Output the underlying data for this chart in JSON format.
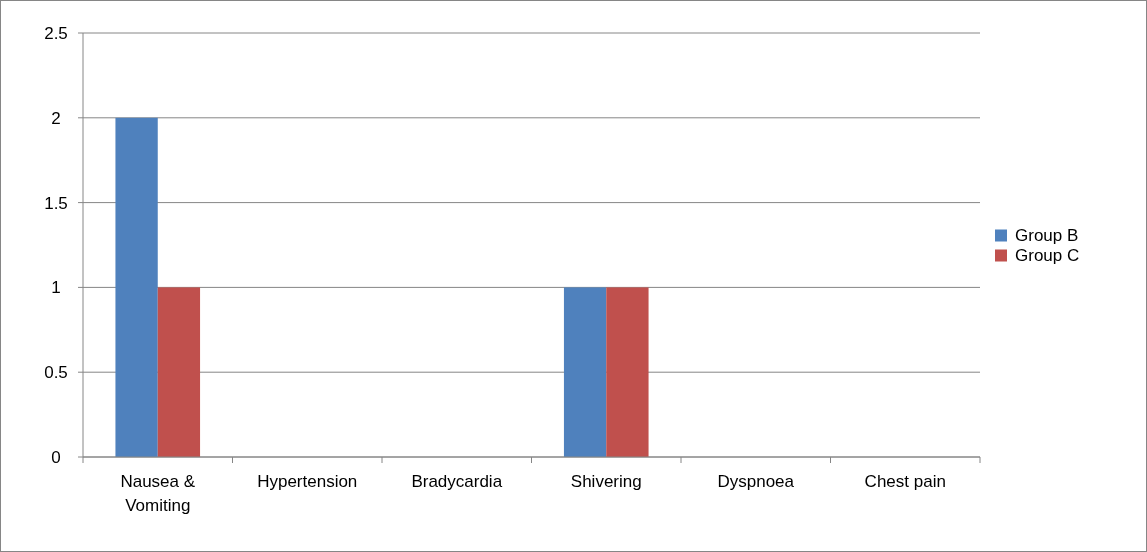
{
  "chart_data": {
    "type": "bar",
    "categories": [
      "Nausea & Vomiting",
      "Hypertension",
      "Bradycardia",
      "Shivering",
      "Dyspnoea",
      "Chest pain"
    ],
    "series": [
      {
        "name": "Group B",
        "color": "#4f81bd",
        "values": [
          2,
          0,
          0,
          1,
          0,
          0
        ]
      },
      {
        "name": "Group C",
        "color": "#c0504d",
        "values": [
          1,
          0,
          0,
          1,
          0,
          0
        ]
      }
    ],
    "ylim": [
      0,
      2.5
    ],
    "yticks": [
      0,
      0.5,
      1,
      1.5,
      2,
      2.5
    ],
    "grid": "y",
    "legend": "right"
  }
}
